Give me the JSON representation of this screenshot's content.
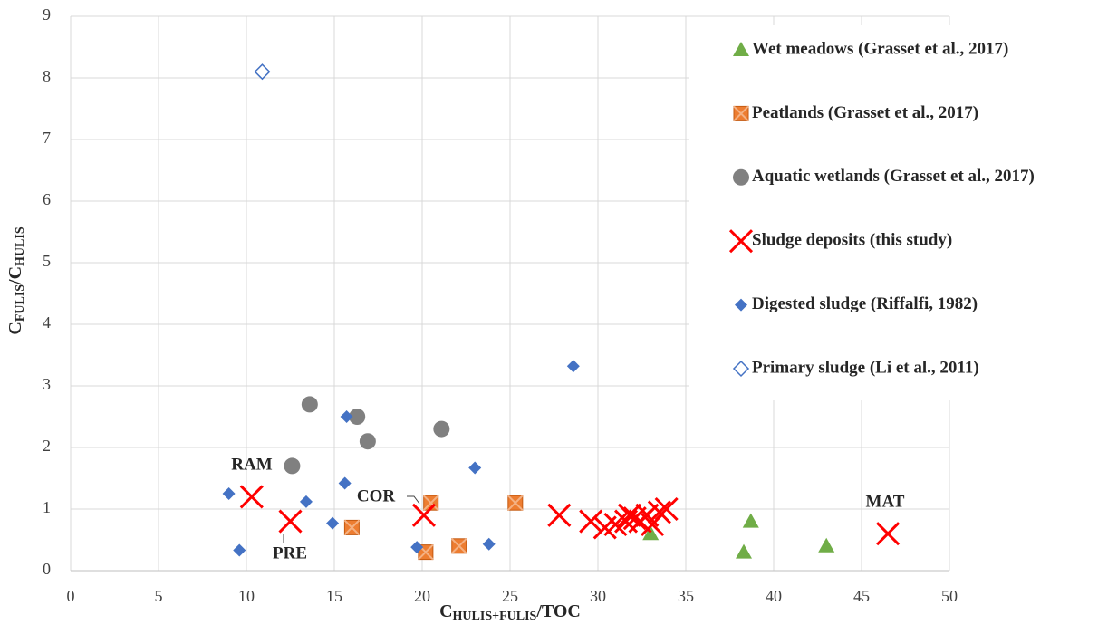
{
  "chart_data": {
    "type": "scatter",
    "x_label": [
      "C",
      "HULIS+FULIS",
      "/TOC"
    ],
    "y_label": [
      "C",
      "FULIS",
      "/C",
      "HULIS"
    ],
    "xlim": [
      0,
      50
    ],
    "xticks": [
      0,
      5,
      10,
      15,
      20,
      25,
      30,
      35,
      40,
      45,
      50
    ],
    "ylim": [
      0,
      9
    ],
    "yticks": [
      0,
      1,
      2,
      3,
      4,
      5,
      6,
      7,
      8,
      9
    ],
    "grid": true,
    "legend": "right",
    "series": [
      {
        "name": "Wet meadows (Grasset et al., 2017)",
        "color": "#70ad47",
        "marker": "triangle",
        "x": [
          33,
          38.3,
          38.7,
          43
        ],
        "values": [
          0.6,
          0.3,
          0.8,
          0.4
        ]
      },
      {
        "name": "Peatlands (Grasset et al., 2017)",
        "color": "#ed7d31",
        "marker": "square",
        "x": [
          16,
          20.2,
          20.5,
          22.1,
          25.3
        ],
        "values": [
          0.7,
          0.3,
          1.1,
          0.4,
          1.1
        ]
      },
      {
        "name": "Aquatic wetlands (Grasset et al., 2017)",
        "color": "#808080",
        "marker": "circle",
        "x": [
          12.6,
          13.6,
          16.3,
          16.9,
          21.1
        ],
        "values": [
          1.7,
          2.7,
          2.5,
          2.1,
          2.3
        ]
      },
      {
        "name": "Sludge deposits (this study)",
        "color": "#ff0000",
        "marker": "cross",
        "x": [
          10.3,
          12.5,
          20.1,
          27.8,
          29.6,
          30.4,
          31,
          31.6,
          31.8,
          32.1,
          32.4,
          32.8,
          33.1,
          33.5,
          33.9,
          46.5
        ],
        "values": [
          1.2,
          0.8,
          0.9,
          0.9,
          0.8,
          0.7,
          0.75,
          0.8,
          0.9,
          0.85,
          0.8,
          0.9,
          0.75,
          0.95,
          1.0,
          0.6
        ]
      },
      {
        "name": "Digested sludge (Riffalfi, 1982)",
        "color": "#4472c4",
        "marker": "diamond",
        "x": [
          9,
          9.6,
          13.4,
          14.9,
          15.6,
          15.7,
          19.7,
          23,
          23.8,
          28.6
        ],
        "values": [
          1.25,
          0.33,
          1.12,
          0.77,
          1.42,
          2.5,
          0.38,
          1.67,
          0.43,
          3.32
        ]
      },
      {
        "name": "Primary sludge (Li et al., 2011)",
        "color": "#4472c4",
        "marker": "open-diamond",
        "x": [
          10.9
        ],
        "values": [
          8.1
        ]
      }
    ],
    "annotations": [
      "RAM",
      "PRE",
      "COR",
      "MAT"
    ]
  }
}
